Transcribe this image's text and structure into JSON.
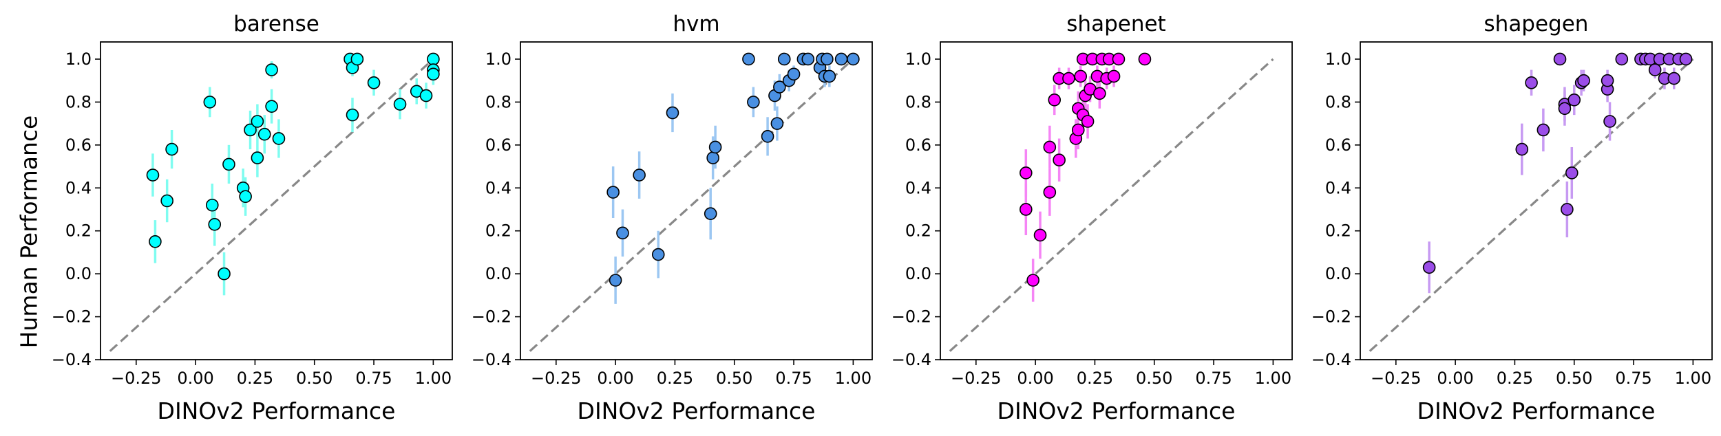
{
  "figure": {
    "ylabel": "Human Performance",
    "xlabel": "DINOv2 Performance"
  },
  "chart_data": [
    {
      "type": "scatter",
      "title": "barense",
      "color": "#00ffff",
      "error_color": "#7ffcf0",
      "xlabel": "DINOv2 Performance",
      "ylabel": "Human Performance",
      "xlim": [
        -0.4,
        1.08
      ],
      "ylim": [
        -0.4,
        1.08
      ],
      "xticks": [
        -0.25,
        0.0,
        0.25,
        0.5,
        0.75,
        1.0
      ],
      "xtick_labels": [
        "−0.25",
        "0.00",
        "0.25",
        "0.50",
        "0.75",
        "1.00"
      ],
      "yticks": [
        -0.4,
        -0.2,
        0.0,
        0.2,
        0.4,
        0.6,
        0.8,
        1.0
      ],
      "ytick_labels": [
        "−0.4",
        "−0.2",
        "0.0",
        "0.2",
        "0.4",
        "0.6",
        "0.8",
        "1.0"
      ],
      "diagonal": {
        "from": [
          -0.36,
          -0.36
        ],
        "to": [
          1.0,
          1.0
        ],
        "color": "#888888",
        "style": "dashed"
      },
      "points": [
        {
          "x": -0.18,
          "y": 0.46,
          "err": 0.1
        },
        {
          "x": -0.17,
          "y": 0.15,
          "err": 0.1
        },
        {
          "x": -0.12,
          "y": 0.34,
          "err": 0.1
        },
        {
          "x": -0.1,
          "y": 0.58,
          "err": 0.09
        },
        {
          "x": 0.06,
          "y": 0.8,
          "err": 0.07
        },
        {
          "x": 0.07,
          "y": 0.32,
          "err": 0.1
        },
        {
          "x": 0.08,
          "y": 0.23,
          "err": 0.1
        },
        {
          "x": 0.12,
          "y": 0.0,
          "err": 0.1
        },
        {
          "x": 0.14,
          "y": 0.51,
          "err": 0.09
        },
        {
          "x": 0.2,
          "y": 0.4,
          "err": 0.09
        },
        {
          "x": 0.21,
          "y": 0.36,
          "err": 0.09
        },
        {
          "x": 0.23,
          "y": 0.67,
          "err": 0.09
        },
        {
          "x": 0.26,
          "y": 0.71,
          "err": 0.08
        },
        {
          "x": 0.26,
          "y": 0.54,
          "err": 0.09
        },
        {
          "x": 0.29,
          "y": 0.65,
          "err": 0.09
        },
        {
          "x": 0.32,
          "y": 0.78,
          "err": 0.08
        },
        {
          "x": 0.32,
          "y": 0.95,
          "err": 0.04
        },
        {
          "x": 0.35,
          "y": 0.63,
          "err": 0.09
        },
        {
          "x": 0.65,
          "y": 1.0,
          "err": 0.02
        },
        {
          "x": 0.66,
          "y": 0.96,
          "err": 0.04
        },
        {
          "x": 0.66,
          "y": 0.74,
          "err": 0.08
        },
        {
          "x": 0.68,
          "y": 1.0,
          "err": 0.02
        },
        {
          "x": 0.75,
          "y": 0.89,
          "err": 0.06
        },
        {
          "x": 0.86,
          "y": 0.79,
          "err": 0.07
        },
        {
          "x": 0.93,
          "y": 0.85,
          "err": 0.06
        },
        {
          "x": 0.97,
          "y": 0.83,
          "err": 0.06
        },
        {
          "x": 1.0,
          "y": 1.0,
          "err": 0.02
        },
        {
          "x": 1.0,
          "y": 0.95,
          "err": 0.04
        },
        {
          "x": 1.0,
          "y": 0.93,
          "err": 0.05
        }
      ]
    },
    {
      "type": "scatter",
      "title": "hvm",
      "color": "#4a90e2",
      "error_color": "#9cc7f2",
      "xlabel": "DINOv2 Performance",
      "xlim": [
        -0.4,
        1.08
      ],
      "ylim": [
        -0.4,
        1.08
      ],
      "xticks": [
        -0.25,
        0.0,
        0.25,
        0.5,
        0.75,
        1.0
      ],
      "xtick_labels": [
        "−0.25",
        "0.00",
        "0.25",
        "0.50",
        "0.75",
        "1.00"
      ],
      "yticks": [
        -0.4,
        -0.2,
        0.0,
        0.2,
        0.4,
        0.6,
        0.8,
        1.0
      ],
      "ytick_labels": [
        "−0.4",
        "−0.2",
        "0.0",
        "0.2",
        "0.4",
        "0.6",
        "0.8",
        "1.0"
      ],
      "diagonal": {
        "from": [
          -0.36,
          -0.36
        ],
        "to": [
          1.0,
          1.0
        ],
        "color": "#888888",
        "style": "dashed"
      },
      "points": [
        {
          "x": -0.01,
          "y": 0.38,
          "err": 0.12
        },
        {
          "x": 0.0,
          "y": -0.03,
          "err": 0.11
        },
        {
          "x": 0.03,
          "y": 0.19,
          "err": 0.11
        },
        {
          "x": 0.1,
          "y": 0.46,
          "err": 0.11
        },
        {
          "x": 0.18,
          "y": 0.09,
          "err": 0.11
        },
        {
          "x": 0.24,
          "y": 0.75,
          "err": 0.09
        },
        {
          "x": 0.4,
          "y": 0.28,
          "err": 0.12
        },
        {
          "x": 0.41,
          "y": 0.54,
          "err": 0.1
        },
        {
          "x": 0.42,
          "y": 0.59,
          "err": 0.1
        },
        {
          "x": 0.56,
          "y": 1.0,
          "err": 0.02
        },
        {
          "x": 0.58,
          "y": 0.8,
          "err": 0.07
        },
        {
          "x": 0.64,
          "y": 0.64,
          "err": 0.09
        },
        {
          "x": 0.67,
          "y": 0.83,
          "err": 0.07
        },
        {
          "x": 0.68,
          "y": 0.7,
          "err": 0.08
        },
        {
          "x": 0.69,
          "y": 0.87,
          "err": 0.06
        },
        {
          "x": 0.71,
          "y": 1.0,
          "err": 0.02
        },
        {
          "x": 0.73,
          "y": 0.9,
          "err": 0.05
        },
        {
          "x": 0.75,
          "y": 0.93,
          "err": 0.04
        },
        {
          "x": 0.79,
          "y": 1.0,
          "err": 0.02
        },
        {
          "x": 0.81,
          "y": 1.0,
          "err": 0.02
        },
        {
          "x": 0.86,
          "y": 0.96,
          "err": 0.04
        },
        {
          "x": 0.87,
          "y": 1.0,
          "err": 0.02
        },
        {
          "x": 0.88,
          "y": 0.92,
          "err": 0.05
        },
        {
          "x": 0.89,
          "y": 1.0,
          "err": 0.02
        },
        {
          "x": 0.9,
          "y": 0.92,
          "err": 0.05
        },
        {
          "x": 0.95,
          "y": 1.0,
          "err": 0.02
        },
        {
          "x": 1.0,
          "y": 1.0,
          "err": 0.02
        }
      ]
    },
    {
      "type": "scatter",
      "title": "shapenet",
      "color": "#ff00ff",
      "error_color": "#f585f5",
      "xlabel": "DINOv2 Performance",
      "xlim": [
        -0.4,
        1.08
      ],
      "ylim": [
        -0.4,
        1.08
      ],
      "xticks": [
        -0.25,
        0.0,
        0.25,
        0.5,
        0.75,
        1.0
      ],
      "xtick_labels": [
        "−0.25",
        "0.00",
        "0.25",
        "0.50",
        "0.75",
        "1.00"
      ],
      "yticks": [
        -0.4,
        -0.2,
        0.0,
        0.2,
        0.4,
        0.6,
        0.8,
        1.0
      ],
      "ytick_labels": [
        "−0.4",
        "−0.2",
        "0.0",
        "0.2",
        "0.4",
        "0.6",
        "0.8",
        "1.0"
      ],
      "diagonal": {
        "from": [
          -0.36,
          -0.36
        ],
        "to": [
          1.0,
          1.0
        ],
        "color": "#888888",
        "style": "dashed"
      },
      "points": [
        {
          "x": -0.04,
          "y": 0.47,
          "err": 0.11
        },
        {
          "x": -0.04,
          "y": 0.3,
          "err": 0.12
        },
        {
          "x": -0.01,
          "y": -0.03,
          "err": 0.1
        },
        {
          "x": 0.02,
          "y": 0.18,
          "err": 0.11
        },
        {
          "x": 0.06,
          "y": 0.59,
          "err": 0.1
        },
        {
          "x": 0.06,
          "y": 0.38,
          "err": 0.11
        },
        {
          "x": 0.08,
          "y": 0.81,
          "err": 0.07
        },
        {
          "x": 0.1,
          "y": 0.91,
          "err": 0.05
        },
        {
          "x": 0.1,
          "y": 0.53,
          "err": 0.1
        },
        {
          "x": 0.14,
          "y": 0.91,
          "err": 0.05
        },
        {
          "x": 0.17,
          "y": 0.63,
          "err": 0.09
        },
        {
          "x": 0.18,
          "y": 0.67,
          "err": 0.09
        },
        {
          "x": 0.18,
          "y": 0.77,
          "err": 0.08
        },
        {
          "x": 0.19,
          "y": 0.92,
          "err": 0.05
        },
        {
          "x": 0.2,
          "y": 1.0,
          "err": 0.02
        },
        {
          "x": 0.2,
          "y": 0.74,
          "err": 0.08
        },
        {
          "x": 0.21,
          "y": 0.83,
          "err": 0.07
        },
        {
          "x": 0.22,
          "y": 0.71,
          "err": 0.08
        },
        {
          "x": 0.23,
          "y": 0.86,
          "err": 0.06
        },
        {
          "x": 0.24,
          "y": 1.0,
          "err": 0.02
        },
        {
          "x": 0.26,
          "y": 0.92,
          "err": 0.05
        },
        {
          "x": 0.27,
          "y": 0.84,
          "err": 0.07
        },
        {
          "x": 0.28,
          "y": 1.0,
          "err": 0.02
        },
        {
          "x": 0.3,
          "y": 0.91,
          "err": 0.05
        },
        {
          "x": 0.31,
          "y": 1.0,
          "err": 0.02
        },
        {
          "x": 0.33,
          "y": 0.92,
          "err": 0.05
        },
        {
          "x": 0.35,
          "y": 1.0,
          "err": 0.02
        },
        {
          "x": 0.46,
          "y": 1.0,
          "err": 0.02
        }
      ]
    },
    {
      "type": "scatter",
      "title": "shapegen",
      "color": "#9b4de8",
      "error_color": "#c79af2",
      "xlabel": "DINOv2 Performance",
      "xlim": [
        -0.4,
        1.08
      ],
      "ylim": [
        -0.4,
        1.08
      ],
      "xticks": [
        -0.25,
        0.0,
        0.25,
        0.5,
        0.75,
        1.0
      ],
      "xtick_labels": [
        "−0.25",
        "0.00",
        "0.25",
        "0.50",
        "0.75",
        "1.00"
      ],
      "yticks": [
        -0.4,
        -0.2,
        0.0,
        0.2,
        0.4,
        0.6,
        0.8,
        1.0
      ],
      "ytick_labels": [
        "−0.4",
        "−0.2",
        "0.0",
        "0.2",
        "0.4",
        "0.6",
        "0.8",
        "1.0"
      ],
      "diagonal": {
        "from": [
          -0.36,
          -0.36
        ],
        "to": [
          1.0,
          1.0
        ],
        "color": "#888888",
        "style": "dashed"
      },
      "points": [
        {
          "x": -0.11,
          "y": 0.03,
          "err": 0.12
        },
        {
          "x": 0.28,
          "y": 0.58,
          "err": 0.12
        },
        {
          "x": 0.32,
          "y": 0.89,
          "err": 0.06
        },
        {
          "x": 0.37,
          "y": 0.67,
          "err": 0.1
        },
        {
          "x": 0.44,
          "y": 1.0,
          "err": 0.02
        },
        {
          "x": 0.46,
          "y": 0.79,
          "err": 0.08
        },
        {
          "x": 0.46,
          "y": 0.77,
          "err": 0.08
        },
        {
          "x": 0.47,
          "y": 0.3,
          "err": 0.13
        },
        {
          "x": 0.49,
          "y": 0.47,
          "err": 0.12
        },
        {
          "x": 0.5,
          "y": 0.81,
          "err": 0.07
        },
        {
          "x": 0.53,
          "y": 0.89,
          "err": 0.06
        },
        {
          "x": 0.54,
          "y": 0.9,
          "err": 0.05
        },
        {
          "x": 0.64,
          "y": 0.86,
          "err": 0.06
        },
        {
          "x": 0.64,
          "y": 0.9,
          "err": 0.05
        },
        {
          "x": 0.65,
          "y": 0.71,
          "err": 0.09
        },
        {
          "x": 0.7,
          "y": 1.0,
          "err": 0.02
        },
        {
          "x": 0.78,
          "y": 1.0,
          "err": 0.02
        },
        {
          "x": 0.8,
          "y": 1.0,
          "err": 0.02
        },
        {
          "x": 0.82,
          "y": 1.0,
          "err": 0.02
        },
        {
          "x": 0.84,
          "y": 0.95,
          "err": 0.04
        },
        {
          "x": 0.86,
          "y": 1.0,
          "err": 0.02
        },
        {
          "x": 0.88,
          "y": 0.91,
          "err": 0.05
        },
        {
          "x": 0.9,
          "y": 1.0,
          "err": 0.02
        },
        {
          "x": 0.92,
          "y": 0.91,
          "err": 0.05
        },
        {
          "x": 0.94,
          "y": 1.0,
          "err": 0.02
        },
        {
          "x": 0.97,
          "y": 1.0,
          "err": 0.02
        }
      ]
    }
  ]
}
